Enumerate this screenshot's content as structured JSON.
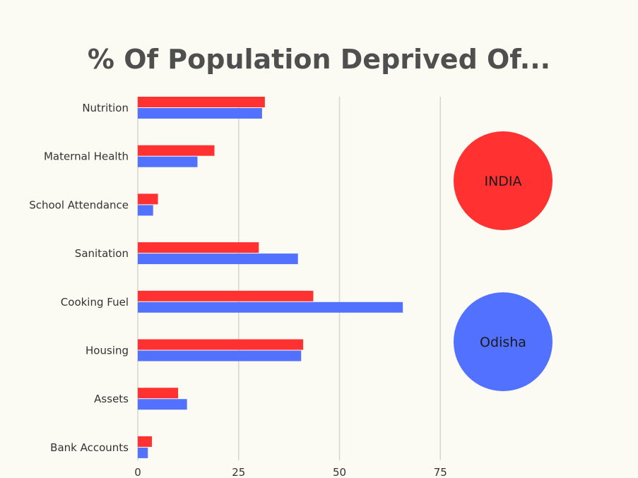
{
  "chart_data": {
    "type": "bar",
    "orientation": "horizontal",
    "title": "% Of Population Deprived Of...",
    "categories": [
      "Nutrition",
      "Maternal Health",
      "School Attendance",
      "Sanitation",
      "Cooking Fuel",
      "Housing",
      "Assets",
      "Bank Accounts"
    ],
    "series": [
      {
        "name": "INDIA",
        "color": "#ff3131",
        "values": [
          31.5,
          19,
          5,
          30,
          43.5,
          41,
          10,
          3.5
        ]
      },
      {
        "name": "Odisha",
        "color": "#5271ff",
        "values": [
          30.8,
          14.8,
          3.8,
          39.7,
          65.7,
          40.5,
          12.2,
          2.5
        ]
      }
    ],
    "xlim": [
      0,
      75
    ],
    "xticks": [
      "0",
      "25",
      "50",
      "75"
    ],
    "grid": true,
    "legend": {
      "placement": "right",
      "style": "circles"
    }
  }
}
